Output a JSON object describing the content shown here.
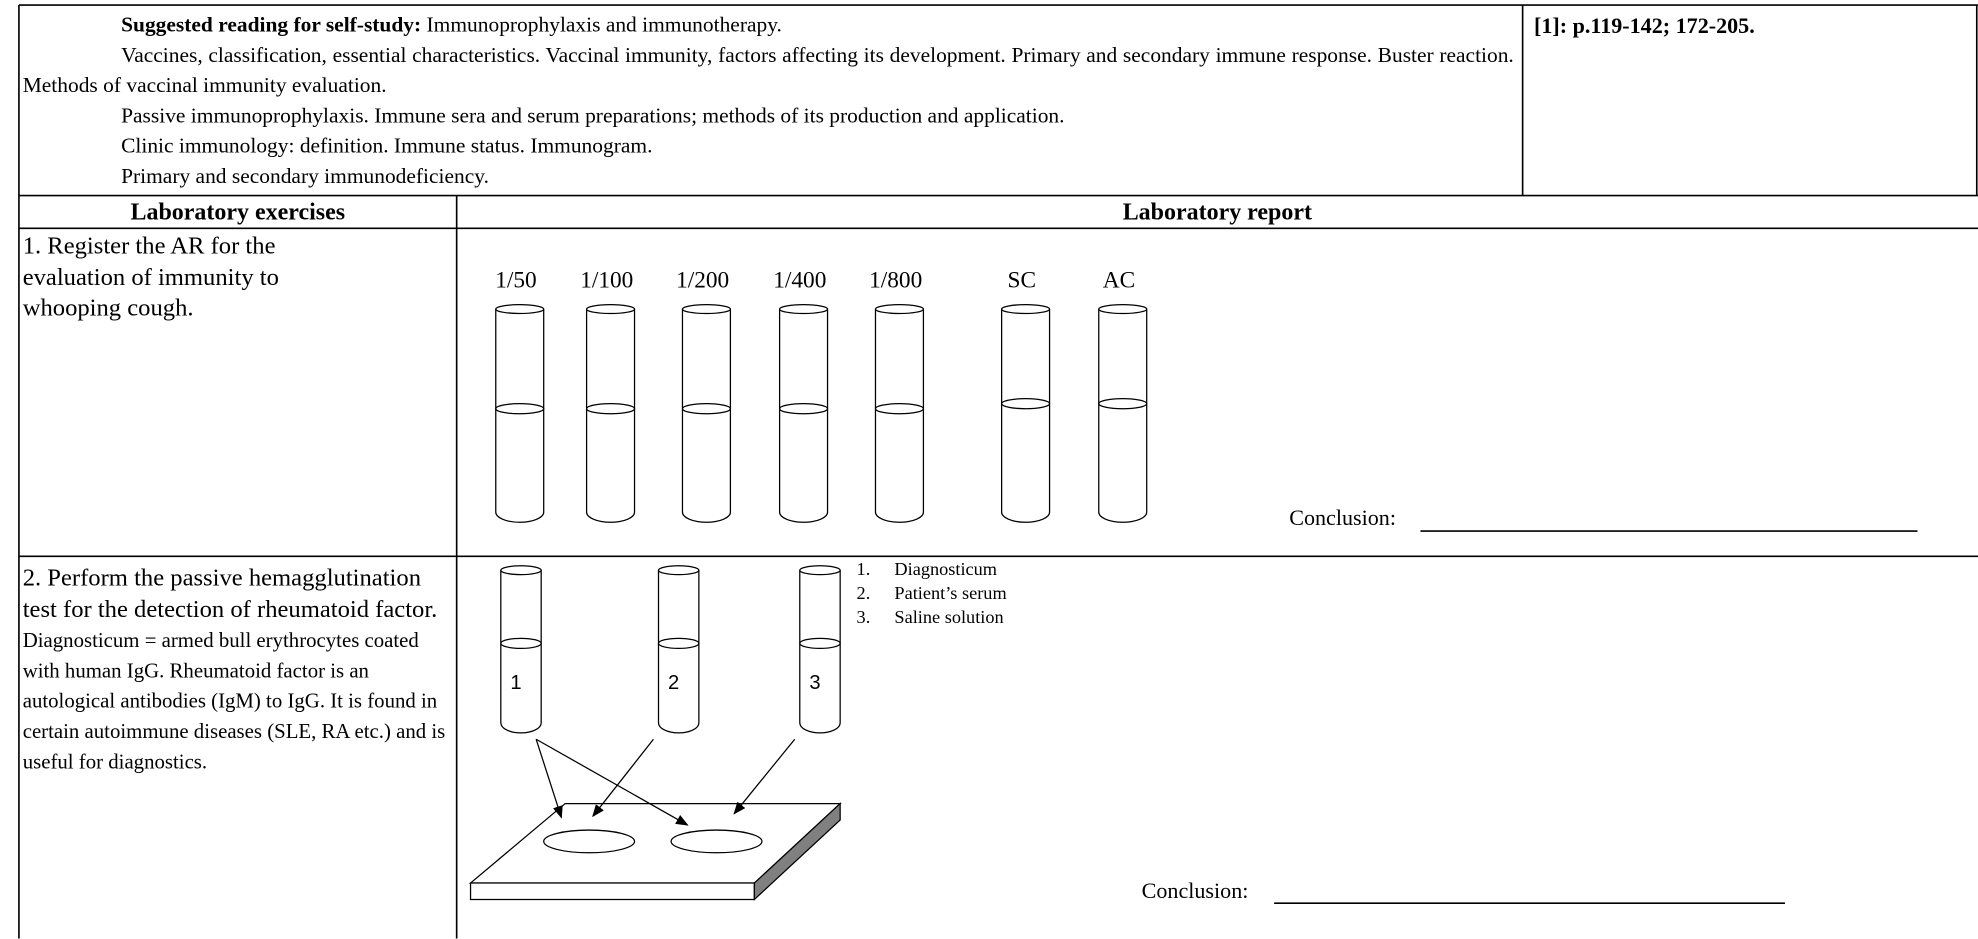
{
  "header": {
    "reading_label": "Suggested reading for self-study:",
    "reading_paragraphs": [
      "Immunoprophylaxis and immunotherapy.",
      "Vaccines, classification, essential characteristics. Vaccinal immunity, factors affecting its development. Primary and secondary immune response. Buster reaction. Methods of vaccinal immunity evaluation.",
      "Passive immunoprophylaxis. Immune sera and serum preparations; methods of its production and application.",
      "Clinic immunology: definition. Immune status. Immunogram.",
      "Primary and secondary immunodeficiency."
    ],
    "reference": "[1]: p.119-142; 172-205."
  },
  "table": {
    "headers": [
      "Laboratory exercises",
      "Laboratory report"
    ],
    "exercise1": {
      "task": "1. Register the AR for the evaluation of immunity to whooping cough.",
      "tube_labels": [
        "1/50",
        "1/100",
        "1/200",
        "1/400",
        "1/800",
        "SC",
        "AC"
      ],
      "conclusion": "Conclusion:"
    },
    "exercise2": {
      "task": "2. Perform the passive hemagglutination test for the detection of rheumatoid factor.",
      "description": "Diagnosticum = armed bull erythrocytes coated with human IgG. Rheumatoid factor is an autological antibodies (IgM) to IgG. It is found in certain autoimmune diseases (SLE, RA etc.) and is useful for diagnostics.",
      "tube_labels": [
        "1",
        "2",
        "3"
      ],
      "legend": [
        {
          "number": "1.",
          "text": "Diagnosticum"
        },
        {
          "number": "2.",
          "text": "Patient’s serum"
        },
        {
          "number": "3.",
          "text": "Saline solution"
        }
      ],
      "conclusion": "Conclusion:"
    }
  }
}
